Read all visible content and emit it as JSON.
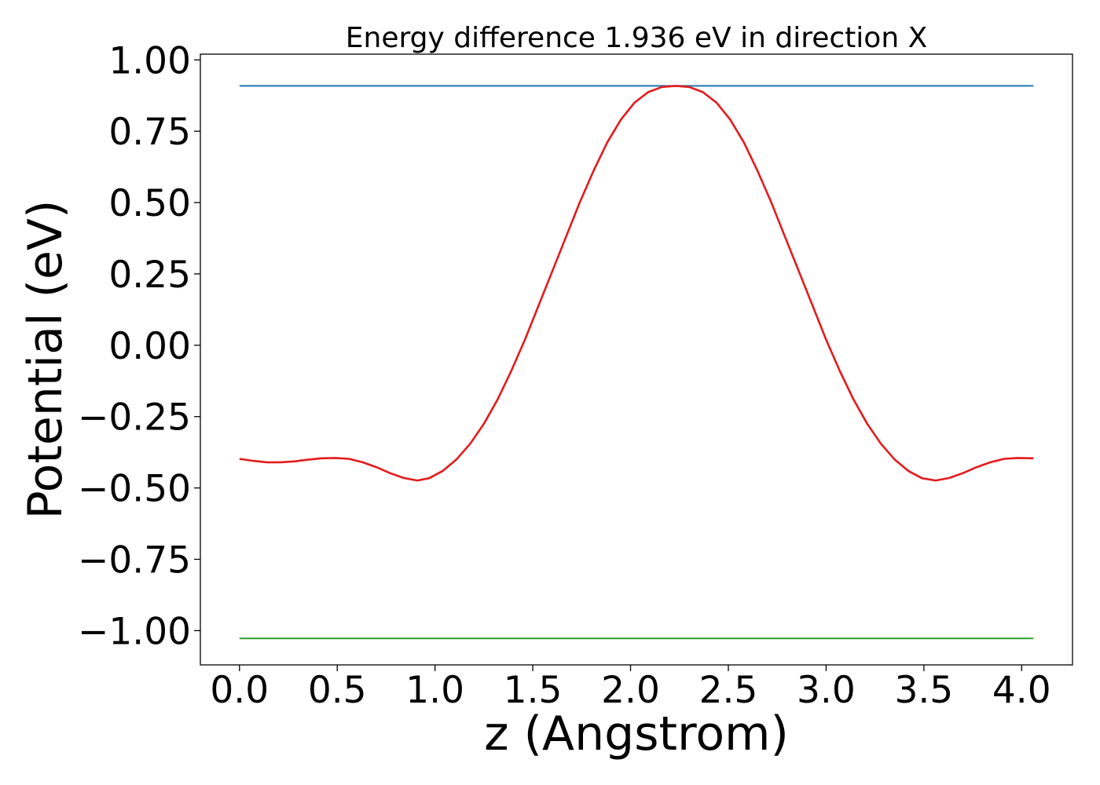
{
  "chart_data": {
    "type": "line",
    "title": "Energy difference 1.936 eV in direction X",
    "xlabel": "z (Angstrom)",
    "ylabel": "Potential (eV)",
    "xlim": [
      -0.2,
      4.26
    ],
    "ylim": [
      -1.12,
      1.02
    ],
    "xticks": [
      0.0,
      0.5,
      1.0,
      1.5,
      2.0,
      2.5,
      3.0,
      3.5,
      4.0
    ],
    "xtick_labels": [
      "0.0",
      "0.5",
      "1.0",
      "1.5",
      "2.0",
      "2.5",
      "3.0",
      "3.5",
      "4.0"
    ],
    "yticks": [
      1.0,
      0.75,
      0.5,
      0.25,
      0.0,
      -0.25,
      -0.5,
      -0.75,
      -1.0
    ],
    "ytick_labels": [
      "1.00",
      "0.75",
      "0.50",
      "0.25",
      "0.00",
      "−0.25",
      "−0.50",
      "−0.75",
      "−1.00"
    ],
    "grid": false,
    "legend": "none",
    "series": [
      {
        "color": "#1f77b4",
        "x": [
          0.0,
          4.06
        ],
        "y": [
          0.909,
          0.909
        ]
      },
      {
        "color": "#2ca02c",
        "x": [
          0.0,
          4.06
        ],
        "y": [
          -1.027,
          -1.027
        ]
      },
      {
        "color": "#e41a1c",
        "x": [
          0.0,
          0.07,
          0.14,
          0.21,
          0.28,
          0.35,
          0.42,
          0.49,
          0.56,
          0.63,
          0.7,
          0.77,
          0.84,
          0.91,
          0.97,
          1.04,
          1.11,
          1.18,
          1.25,
          1.32,
          1.39,
          1.46,
          1.53,
          1.6,
          1.67,
          1.74,
          1.81,
          1.88,
          1.95,
          2.02,
          2.09,
          2.16,
          2.23,
          2.3,
          2.37,
          2.44,
          2.51,
          2.58,
          2.65,
          2.72,
          2.79,
          2.86,
          2.93,
          3.0,
          3.07,
          3.14,
          3.21,
          3.28,
          3.35,
          3.42,
          3.49,
          3.56,
          3.63,
          3.7,
          3.77,
          3.84,
          3.91,
          3.98,
          4.06
        ],
        "y": [
          -0.398,
          -0.405,
          -0.41,
          -0.41,
          -0.407,
          -0.401,
          -0.396,
          -0.395,
          -0.398,
          -0.41,
          -0.427,
          -0.448,
          -0.465,
          -0.474,
          -0.466,
          -0.44,
          -0.4,
          -0.345,
          -0.275,
          -0.19,
          -0.09,
          0.02,
          0.14,
          0.26,
          0.38,
          0.5,
          0.61,
          0.71,
          0.79,
          0.85,
          0.887,
          0.905,
          0.909,
          0.905,
          0.887,
          0.85,
          0.79,
          0.71,
          0.61,
          0.5,
          0.38,
          0.26,
          0.14,
          0.02,
          -0.09,
          -0.19,
          -0.275,
          -0.345,
          -0.4,
          -0.44,
          -0.466,
          -0.474,
          -0.465,
          -0.448,
          -0.427,
          -0.41,
          -0.398,
          -0.395,
          -0.396
        ]
      }
    ]
  }
}
